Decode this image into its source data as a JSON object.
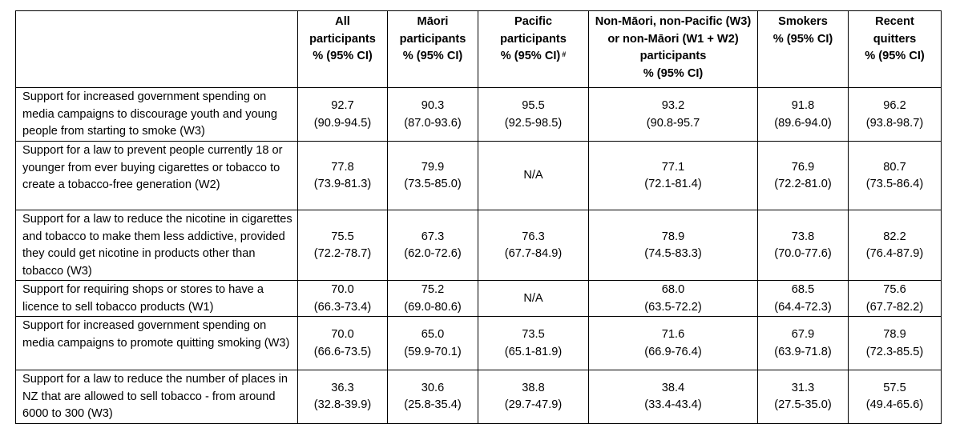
{
  "table": {
    "headers": {
      "corner": "",
      "columns": [
        {
          "label": "All participants",
          "unit": "% (95% CI)",
          "mark": ""
        },
        {
          "label": "Māori participants",
          "unit": "% (95% CI)",
          "mark": ""
        },
        {
          "label": "Pacific participants",
          "unit": "% (95% CI)",
          "mark": "#"
        },
        {
          "label": "Non-Māori, non-Pacific (W3) or non-Māori (W1 + W2) participants",
          "unit": "% (95% CI)",
          "mark": ""
        },
        {
          "label": "Smokers",
          "unit": "% (95% CI)",
          "mark": ""
        },
        {
          "label": "Recent quitters",
          "unit": "% (95% CI)",
          "mark": ""
        }
      ]
    },
    "rows": [
      {
        "label": "Support for increased government spending on media campaigns to discourage youth and young people from starting to smoke (W3)",
        "cells": [
          {
            "est": "92.7",
            "ci": "(90.9-94.5)"
          },
          {
            "est": "90.3",
            "ci": "(87.0-93.6)"
          },
          {
            "est": "95.5",
            "ci": "(92.5-98.5)"
          },
          {
            "est": "93.2",
            "ci": "(90.8-95.7"
          },
          {
            "est": "91.8",
            "ci": "(89.6-94.0)"
          },
          {
            "est": "96.2",
            "ci": "(93.8-98.7)"
          }
        ]
      },
      {
        "label": "Support for a law to prevent people currently 18 or younger from ever buying cigarettes or tobacco to create a tobacco-free generation (W2)",
        "cells": [
          {
            "est": "77.8",
            "ci": "(73.9-81.3)"
          },
          {
            "est": "79.9",
            "ci": "(73.5-85.0)"
          },
          {
            "est": "N/A",
            "ci": ""
          },
          {
            "est": "77.1",
            "ci": "(72.1-81.4)"
          },
          {
            "est": "76.9",
            "ci": "(72.2-81.0)"
          },
          {
            "est": "80.7",
            "ci": "(73.5-86.4)"
          }
        ]
      },
      {
        "label": "Support for a law to reduce the nicotine in cigarettes and tobacco to make them less addictive, provided they could get nicotine in products other than tobacco (W3)",
        "cells": [
          {
            "est": "75.5",
            "ci": "(72.2-78.7)"
          },
          {
            "est": "67.3",
            "ci": "(62.0-72.6)"
          },
          {
            "est": "76.3",
            "ci": "(67.7-84.9)"
          },
          {
            "est": "78.9",
            "ci": "(74.5-83.3)"
          },
          {
            "est": "73.8",
            "ci": "(70.0-77.6)"
          },
          {
            "est": "82.2",
            "ci": "(76.4-87.9)"
          }
        ]
      },
      {
        "label": "Support for requiring shops or stores to have a licence to sell tobacco products (W1)",
        "cells": [
          {
            "est": "70.0",
            "ci": "(66.3-73.4)"
          },
          {
            "est": "75.2",
            "ci": "(69.0-80.6)"
          },
          {
            "est": "N/A",
            "ci": ""
          },
          {
            "est": "68.0",
            "ci": "(63.5-72.2)"
          },
          {
            "est": "68.5",
            "ci": "(64.4-72.3)"
          },
          {
            "est": "75.6",
            "ci": "(67.7-82.2)"
          }
        ]
      },
      {
        "label": "Support for increased government spending on media campaigns to promote quitting smoking (W3)",
        "cells": [
          {
            "est": "70.0",
            "ci": "(66.6-73.5)"
          },
          {
            "est": "65.0",
            "ci": "(59.9-70.1)"
          },
          {
            "est": "73.5",
            "ci": "(65.1-81.9)"
          },
          {
            "est": "71.6",
            "ci": "(66.9-76.4)"
          },
          {
            "est": "67.9",
            "ci": "(63.9-71.8)"
          },
          {
            "est": "78.9",
            "ci": "(72.3-85.5)"
          }
        ]
      },
      {
        "label": "Support for a law to reduce the number of places in NZ that are allowed to sell tobacco - from around 6000 to 300 (W3)",
        "cells": [
          {
            "est": "36.3",
            "ci": "(32.8-39.9)"
          },
          {
            "est": "30.6",
            "ci": "(25.8-35.4)"
          },
          {
            "est": "38.8",
            "ci": "(29.7-47.9)"
          },
          {
            "est": "38.4",
            "ci": "(33.4-43.4)"
          },
          {
            "est": "31.3",
            "ci": "(27.5-35.0)"
          },
          {
            "est": "57.5",
            "ci": "(49.4-65.6)"
          }
        ]
      }
    ]
  }
}
